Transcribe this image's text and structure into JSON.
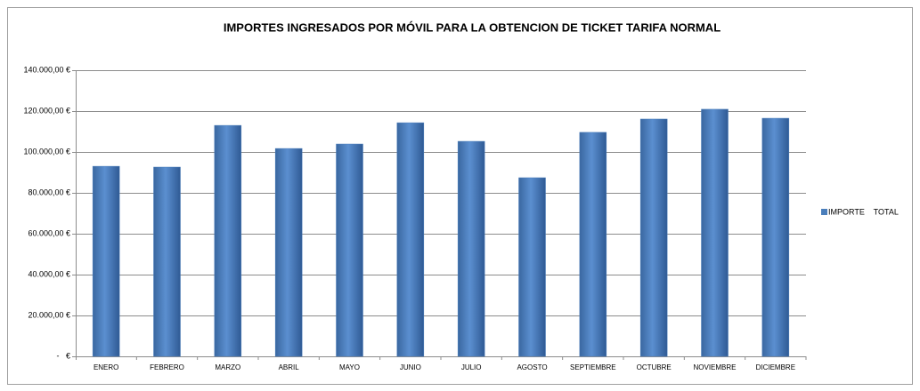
{
  "chart_data": {
    "type": "bar",
    "title": "IMPORTES INGRESADOS POR MÓVIL PARA LA OBTENCION DE TICKET TARIFA NORMAL",
    "categories": [
      "ENERO",
      "FEBRERO",
      "MARZO",
      "ABRIL",
      "MAYO",
      "JUNIO",
      "JULIO",
      "AGOSTO",
      "SEPTIEMBRE",
      "OCTUBRE",
      "NOVIEMBRE",
      "DICIEMBRE"
    ],
    "series": [
      {
        "name": "IMPORTE    TOTAL",
        "color": "#4a7ebb",
        "values": [
          93000,
          92600,
          113000,
          101700,
          103900,
          114300,
          105200,
          87400,
          109600,
          116100,
          120900,
          116500
        ]
      }
    ],
    "ylim": [
      0,
      140000
    ],
    "yticks": [
      {
        "value": 0,
        "label": "-   €"
      },
      {
        "value": 20000,
        "label": "20.000,00 €"
      },
      {
        "value": 40000,
        "label": "40.000,00 €"
      },
      {
        "value": 60000,
        "label": "60.000,00 €"
      },
      {
        "value": 80000,
        "label": "80.000,00 €"
      },
      {
        "value": 100000,
        "label": "100.000,00 €"
      },
      {
        "value": 120000,
        "label": "120.000,00 €"
      },
      {
        "value": 140000,
        "label": "140.000,00 €"
      }
    ],
    "grid": true,
    "legend": "right"
  }
}
